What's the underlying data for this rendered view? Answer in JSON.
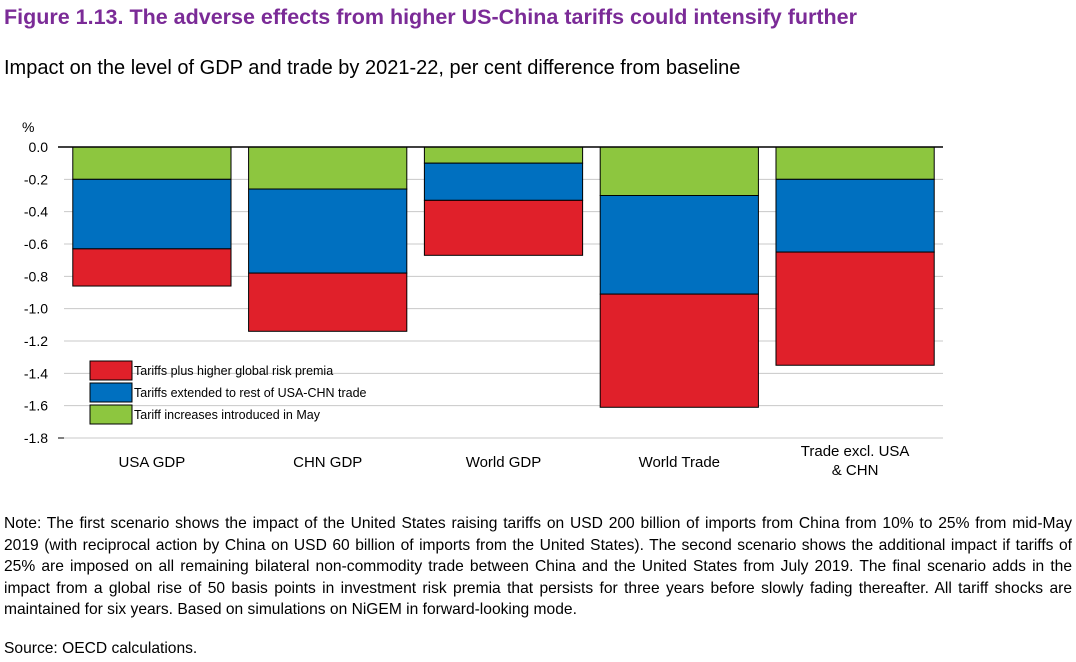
{
  "title": "Figure 1.13. The adverse effects from higher US-China tariffs could intensify further",
  "subtitle": "Impact on the level of GDP and trade by 2021-22, per cent difference from baseline",
  "note": "Note: The first scenario shows the impact of the United States raising tariffs on USD 200 billion of imports from China from 10% to 25% from mid-May 2019 (with reciprocal action by China on USD 60 billion of imports from the United States). The second scenario shows the additional impact if tariffs of 25% are imposed on all remaining bilateral non-commodity trade between China and the United States from July 2019. The final scenario adds in the impact from a global rise of 50 basis points in investment risk premia that persists for three years before slowly fading thereafter. All tariff shocks are maintained for six years. Based on simulations on NiGEM in forward-looking mode.",
  "source": "Source: OECD calculations.",
  "chart_data": {
    "type": "bar",
    "stacked": true,
    "ylabel": "%",
    "ylim": [
      -1.8,
      0.0
    ],
    "yticks": [
      0.0,
      -0.2,
      -0.4,
      -0.6,
      -0.8,
      -1.0,
      -1.2,
      -1.4,
      -1.6,
      -1.8
    ],
    "ytick_labels": [
      "0.0",
      "-0.2",
      "-0.4",
      "-0.6",
      "-0.8",
      "-1.0",
      "-1.2",
      "-1.4",
      "-1.6",
      "-1.8"
    ],
    "grid": true,
    "legend_position": "bottom-left",
    "categories": [
      {
        "label": "USA GDP",
        "lines": [
          "USA GDP"
        ]
      },
      {
        "label": "CHN GDP",
        "lines": [
          "CHN GDP"
        ]
      },
      {
        "label": "World GDP",
        "lines": [
          "World GDP"
        ]
      },
      {
        "label": "World Trade",
        "lines": [
          "World Trade"
        ]
      },
      {
        "label": "Trade excl. USA & CHN",
        "lines": [
          "Trade excl. USA",
          "& CHN"
        ]
      }
    ],
    "series": [
      {
        "name": "Tariff increases introduced in May",
        "color": "#8dc63f",
        "values": [
          -0.2,
          -0.26,
          -0.1,
          -0.3,
          -0.2
        ]
      },
      {
        "name": "Tariffs extended to rest of USA-CHN trade",
        "color": "#0070c0",
        "values": [
          -0.43,
          -0.52,
          -0.23,
          -0.61,
          -0.45
        ]
      },
      {
        "name": "Tariffs plus higher global risk premia",
        "color": "#e0202a",
        "values": [
          -0.23,
          -0.36,
          -0.34,
          -0.7,
          -0.7
        ]
      }
    ],
    "legend_order": [
      2,
      1,
      0
    ]
  }
}
